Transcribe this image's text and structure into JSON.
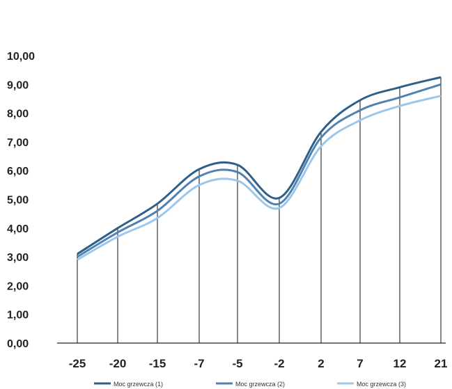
{
  "chart_data": {
    "type": "line",
    "title": "",
    "xlabel": "",
    "ylabel": "",
    "categories": [
      "-25",
      "-20",
      "-15",
      "-7",
      "-5",
      "-2",
      "2",
      "7",
      "12",
      "21"
    ],
    "ylim": [
      0,
      10
    ],
    "yticks": [
      "0,00",
      "1,00",
      "2,00",
      "3,00",
      "4,00",
      "5,00",
      "6,00",
      "7,00",
      "8,00",
      "9,00",
      "10,00"
    ],
    "grid": false,
    "drop_lines": true,
    "legend_position": "bottom",
    "series": [
      {
        "name": "Moc grzewcza (1)",
        "color": "#2e5f8a",
        "values": [
          3.1,
          4.0,
          4.85,
          6.05,
          6.2,
          5.05,
          7.35,
          8.45,
          8.9,
          9.25
        ]
      },
      {
        "name": "Moc grzewcza (2)",
        "color": "#4f81b3",
        "values": [
          3.0,
          3.85,
          4.6,
          5.8,
          5.95,
          4.85,
          7.15,
          8.1,
          8.55,
          9.0
        ]
      },
      {
        "name": "Moc grzewcza (3)",
        "color": "#9dc7ea",
        "values": [
          2.9,
          3.7,
          4.35,
          5.5,
          5.65,
          4.7,
          6.85,
          7.75,
          8.25,
          8.6
        ]
      }
    ]
  }
}
